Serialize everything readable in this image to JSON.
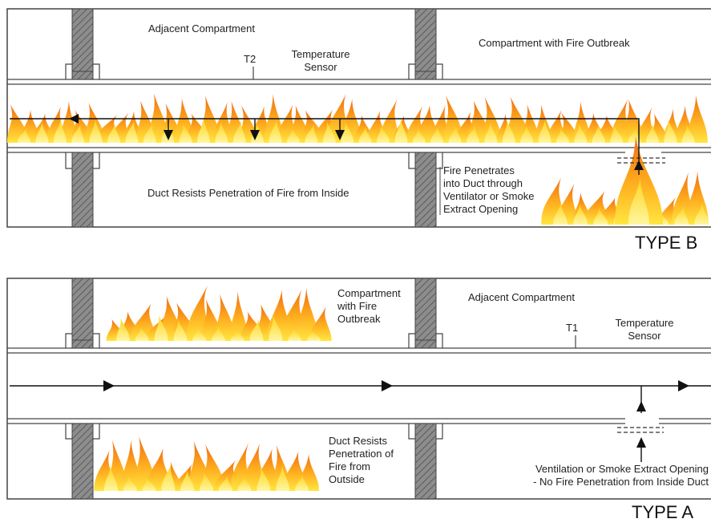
{
  "type_b": {
    "caption": "TYPE B",
    "adjacent_label": "Adjacent Compartment",
    "fire_compartment_label": "Compartment with Fire Outbreak",
    "sensor_id": "T2",
    "sensor_label": [
      "Temperature",
      "Sensor"
    ],
    "resists_label": "Duct Resists Penetration of Fire from Inside",
    "penetrates_label": [
      "Fire Penetrates",
      "into Duct through",
      "Ventilator or Smoke",
      "Extract Opening"
    ]
  },
  "type_a": {
    "caption": "TYPE A",
    "fire_compartment_label": [
      "Compartment",
      "with Fire",
      "Outbreak"
    ],
    "adjacent_label": "Adjacent Compartment",
    "sensor_id": "T1",
    "sensor_label": [
      "Temperature",
      "Sensor"
    ],
    "resists_label": [
      "Duct Resists",
      "Penetration of",
      "Fire from",
      "Outside"
    ],
    "opening_label": [
      "Ventilation or Smoke Extract Opening",
      "- No Fire Penetration from Inside Duct"
    ]
  },
  "colors": {
    "outline": "#444444",
    "wall_fill": "#8a8a8a",
    "flame_outer": "#ffd21a",
    "flame_mid": "#ff9a1a",
    "flame_inner": "#e85a0c"
  }
}
